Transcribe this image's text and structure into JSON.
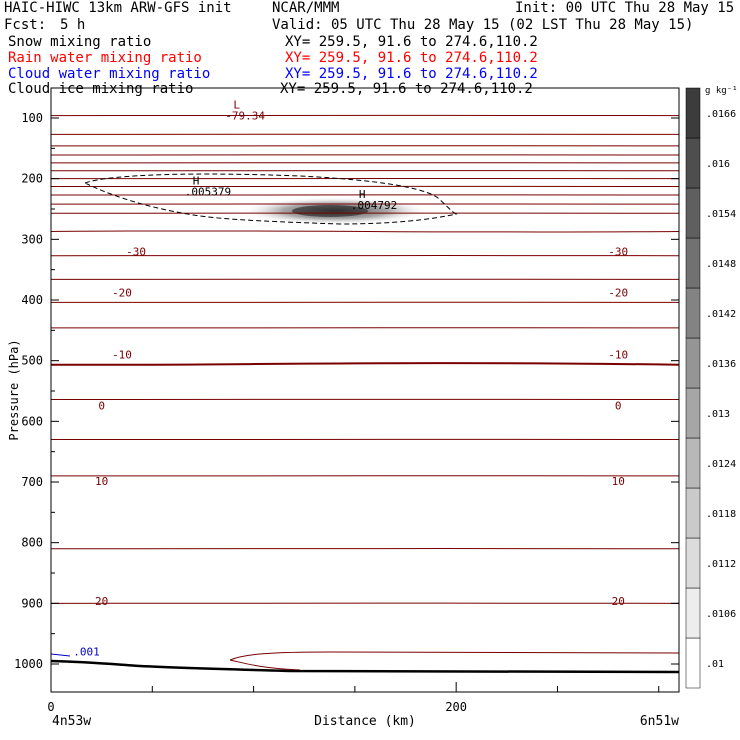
{
  "header": {
    "title": "HAIC-HIWC 13km ARW-GFS init",
    "center": "NCAR/MMM",
    "init": "Init: 00 UTC Thu 28 May 15",
    "fcst_label": "Fcst:",
    "fcst_value": "5 h",
    "valid": "Valid: 05 UTC Thu 28 May 15 (02 LST Thu 28 May 15)"
  },
  "fields": [
    {
      "name": "Snow mixing ratio",
      "xy": "XY= 259.5, 91.6 to 274.6,110.2",
      "color": "#000000"
    },
    {
      "name": "Rain water mixing ratio",
      "xy": "XY= 259.5, 91.6 to 274.6,110.2",
      "color": "#ff0000"
    },
    {
      "name": "Cloud water mixing ratio",
      "xy": "XY= 259.5, 91.6 to 274.6,110.2",
      "color": "#0000ff"
    },
    {
      "name": "Cloud ice mixing ratio",
      "xy": "XY= 259.5, 91.6 to 274.6,110.2",
      "color": "#000000"
    }
  ],
  "colors": {
    "isotherm": "#7a0000",
    "cloud_water": "#0000cc",
    "terrain": "#000000"
  },
  "chart_data": {
    "type": "contour",
    "xlabel": "Distance (km)",
    "ylabel": "Pressure (hPa)",
    "xlim": [
      0,
      310
    ],
    "ylim": [
      1050,
      65
    ],
    "x_ticks": [
      0,
      200
    ],
    "x_tick_labels": [
      "0",
      "200"
    ],
    "y_ticks": [
      100,
      200,
      300,
      400,
      500,
      600,
      700,
      800,
      900,
      1000
    ],
    "x_endpoints": {
      "left": "4n53w",
      "right": "6n51w"
    },
    "isotherm_levels": [
      -80,
      -75,
      -70,
      -65,
      -60,
      -55,
      -50,
      -45,
      -40,
      -35,
      -30,
      -25,
      -20,
      -15,
      -10,
      -5,
      0,
      5,
      10,
      15,
      20,
      25
    ],
    "isotherm_pressures": [
      96,
      127,
      146,
      161,
      174,
      187,
      200,
      213,
      227,
      242,
      257,
      287,
      327,
      366,
      404,
      446,
      505,
      564,
      630,
      690,
      810,
      900
    ],
    "isotherm_labels": [
      {
        "text": "-30",
        "x": 42,
        "p": 320,
        "side": "left"
      },
      {
        "text": "-20",
        "x": 35,
        "p": 388,
        "side": "left"
      },
      {
        "text": "-10",
        "x": 35,
        "p": 490,
        "side": "left"
      },
      {
        "text": "0",
        "x": 25,
        "p": 574,
        "side": "left"
      },
      {
        "text": "10",
        "x": 25,
        "p": 698,
        "side": "left"
      },
      {
        "text": "20",
        "x": 25,
        "p": 896,
        "side": "left"
      },
      {
        "text": "-30",
        "x": 280,
        "p": 320,
        "side": "right"
      },
      {
        "text": "-20",
        "x": 280,
        "p": 388,
        "side": "right"
      },
      {
        "text": "-10",
        "x": 280,
        "p": 490,
        "side": "right"
      },
      {
        "text": "0",
        "x": 280,
        "p": 574,
        "side": "right"
      },
      {
        "text": "10",
        "x": 280,
        "p": 698,
        "side": "right"
      },
      {
        "text": "20",
        "x": 280,
        "p": 896,
        "side": "right"
      }
    ],
    "extrema": [
      {
        "type": "L",
        "value": "-79.34",
        "x": 90,
        "p": 84
      },
      {
        "type": "H",
        "value": ".005379",
        "x": 70,
        "p": 210
      },
      {
        "type": "H",
        "value": ".004792",
        "x": 152,
        "p": 232
      }
    ],
    "cloud_water_label": {
      "text": ".001",
      "x": 8,
      "p": 983
    },
    "colorbar": {
      "unit": "g kg⁻¹",
      "labels": [
        ".01",
        ".0106",
        ".0112",
        ".0118",
        ".0124",
        ".013",
        ".0136",
        ".0142",
        ".0148",
        ".0154",
        ".016",
        ".0166"
      ]
    }
  }
}
